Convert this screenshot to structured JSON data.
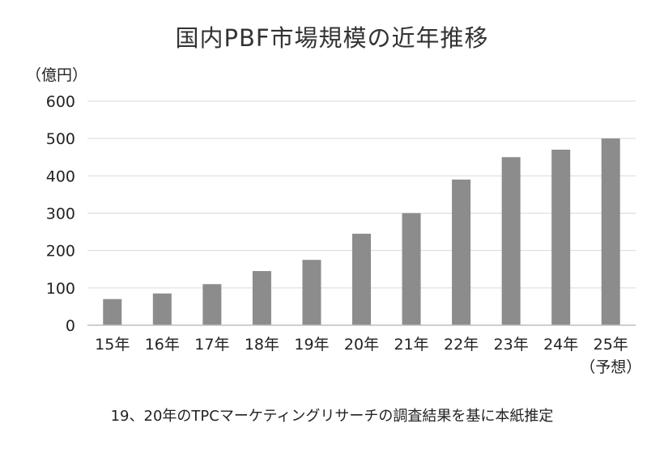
{
  "chart_data": {
    "type": "bar",
    "title": "国内PBF市場規模の近年推移",
    "ylabel": "（億円）",
    "categories": [
      "15年",
      "16年",
      "17年",
      "18年",
      "19年",
      "20年",
      "21年",
      "22年",
      "23年",
      "24年",
      "25年"
    ],
    "category_sublabels": [
      "",
      "",
      "",
      "",
      "",
      "",
      "",
      "",
      "",
      "",
      "（予想）"
    ],
    "values": [
      70,
      85,
      110,
      145,
      175,
      245,
      300,
      390,
      450,
      470,
      500
    ],
    "ylim": [
      0,
      600
    ],
    "yticks": [
      0,
      100,
      200,
      300,
      400,
      500,
      600
    ],
    "grid": true,
    "bar_color": "#8c8c8c",
    "note": "19、20年のTPCマーケティングリサーチの調査結果を基に本紙推定"
  }
}
